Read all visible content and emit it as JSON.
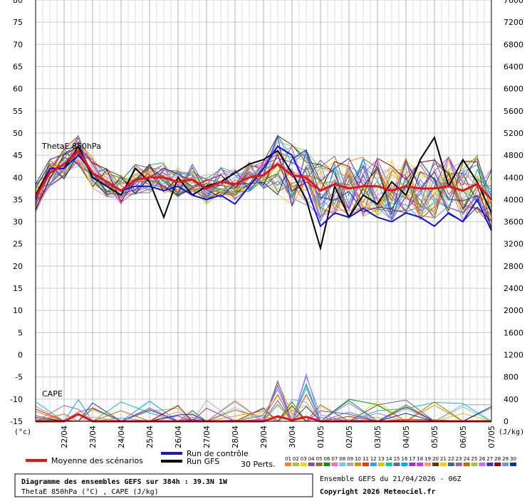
{
  "chart_data": {
    "type": "line",
    "panels": [
      {
        "label": "ThetaE 850hPa",
        "quantity": "ThetaE 850hPa (°C)"
      },
      {
        "label": "CAPE",
        "quantity": "CAPE (J/kg)"
      }
    ],
    "left_axis": {
      "unit": "(°c)",
      "ticks": [
        -15,
        -10,
        -5,
        0,
        5,
        10,
        15,
        20,
        25,
        30,
        35,
        40,
        45,
        50,
        55,
        60,
        65,
        70,
        75,
        80
      ],
      "range": [
        -15,
        80
      ]
    },
    "right_axis": {
      "unit": "(J/kg)",
      "ticks": [
        0,
        400,
        800,
        1200,
        1600,
        2000,
        2400,
        2800,
        3200,
        3600,
        4000,
        4400,
        4800,
        5200,
        5600,
        6000,
        6400,
        6800,
        7200,
        7600
      ],
      "range": [
        0,
        7600
      ]
    },
    "x_ticks": [
      "22/04",
      "23/04",
      "24/04",
      "25/04",
      "26/04",
      "27/04",
      "28/04",
      "29/04",
      "30/04",
      "01/05",
      "02/05",
      "03/05",
      "04/05",
      "05/05",
      "06/05",
      "07/05"
    ],
    "x_range_days": [
      0,
      16
    ],
    "series": [
      {
        "name": "Moyenne des scénarios",
        "color": "#ee1111",
        "panel": "ThetaE 850hPa",
        "x": [
          0,
          0.5,
          1,
          1.5,
          2,
          2.5,
          3,
          3.5,
          4,
          4.5,
          5,
          5.5,
          6,
          6.5,
          7,
          7.5,
          8,
          8.5,
          9,
          9.5,
          10,
          10.5,
          11,
          11.5,
          12,
          12.5,
          13,
          13.5,
          14,
          14.5,
          15,
          15.5,
          16
        ],
        "values": [
          35.5,
          41,
          43,
          46,
          41,
          39,
          37,
          39.5,
          40,
          40,
          39,
          39.5,
          37.5,
          39,
          38.5,
          40,
          40.5,
          43,
          40.5,
          40,
          37,
          38.5,
          37.5,
          38,
          38,
          37,
          38,
          37.5,
          37.5,
          38,
          37,
          38.5,
          35
        ]
      },
      {
        "name": "Run GFS",
        "color": "#000000",
        "panel": "ThetaE 850hPa",
        "x": [
          0,
          0.5,
          1,
          1.5,
          2,
          2.5,
          3,
          3.5,
          4,
          4.5,
          5,
          5.5,
          6,
          6.5,
          7,
          7.5,
          8,
          8.5,
          9,
          9.5,
          10,
          10.5,
          11,
          11.5,
          12,
          12.5,
          13,
          13.5,
          14,
          14.5,
          15,
          15.5,
          16
        ],
        "values": [
          36,
          42,
          42,
          47,
          40,
          38,
          36,
          42,
          39,
          31,
          40,
          36,
          38,
          39,
          41,
          43,
          44,
          46,
          41,
          35,
          24,
          38,
          31,
          36,
          34,
          39,
          36,
          44,
          49,
          38,
          44,
          39,
          32
        ]
      },
      {
        "name": "Run de contrôle",
        "color": "#1111ee",
        "panel": "ThetaE 850hPa",
        "x": [
          0,
          0.5,
          1,
          1.5,
          2,
          2.5,
          3,
          3.5,
          4,
          4.5,
          5,
          5.5,
          6,
          6.5,
          7,
          7.5,
          8,
          8.5,
          9,
          9.5,
          10,
          10.5,
          11,
          11.5,
          12,
          12.5,
          13,
          13.5,
          14,
          14.5,
          15,
          15.5,
          16
        ],
        "values": [
          35,
          42,
          42,
          45,
          41,
          39,
          37,
          38,
          38,
          37,
          38,
          36,
          35,
          36,
          34,
          38,
          42,
          47,
          45,
          38,
          29,
          32,
          31,
          33,
          31,
          30,
          32,
          31,
          29,
          32,
          30,
          35,
          28
        ]
      },
      {
        "name": "Moyenne des scénarios",
        "color": "#ee1111",
        "panel": "CAPE",
        "x": [
          0,
          1,
          1.5,
          2,
          3,
          4,
          5,
          6,
          7,
          8,
          8.5,
          9,
          9.5,
          10,
          11,
          12,
          13,
          14,
          15,
          16
        ],
        "values": [
          0,
          0,
          130,
          0,
          0,
          0,
          0,
          0,
          0,
          0,
          90,
          20,
          80,
          0,
          0,
          0,
          0,
          0,
          0,
          0
        ]
      }
    ],
    "perturbations": {
      "label": "30 Perts.",
      "members": [
        "01",
        "02",
        "03",
        "04",
        "05",
        "06",
        "07",
        "08",
        "09",
        "10",
        "11",
        "12",
        "13",
        "14",
        "15",
        "16",
        "17",
        "18",
        "19",
        "20",
        "21",
        "22",
        "23",
        "24",
        "25",
        "26",
        "27",
        "28",
        "29",
        "30"
      ],
      "colors": [
        "#ff7f27",
        "#a4c639",
        "#ffd400",
        "#7f52a8",
        "#996633",
        "#009900",
        "#ff66cc",
        "#66ccff",
        "#aaaaaa",
        "#cc9900",
        "#ff3300",
        "#3399ff",
        "#cccc00",
        "#00cc99",
        "#666699",
        "#00aaff",
        "#9933cc",
        "#cc33ff",
        "#ff9966",
        "#663300",
        "#ffcc00",
        "#336699",
        "#996699",
        "#cc6600",
        "#99cc33",
        "#cc66ff",
        "#3333cc",
        "#990000",
        "#6699cc",
        "#0033aa"
      ]
    },
    "legend": {
      "placement": "bottom"
    }
  },
  "footer": {
    "title": "Diagramme des ensembles GEFS sur 384h : 39.3N 1W",
    "subtitle": "ThetaE 850hPa (°C) , CAPE (J/kg)",
    "ensemble_info": "Ensemble GEFS du 21/04/2026 - 06Z",
    "copyright": "Copyright 2026 Meteociel.fr"
  }
}
